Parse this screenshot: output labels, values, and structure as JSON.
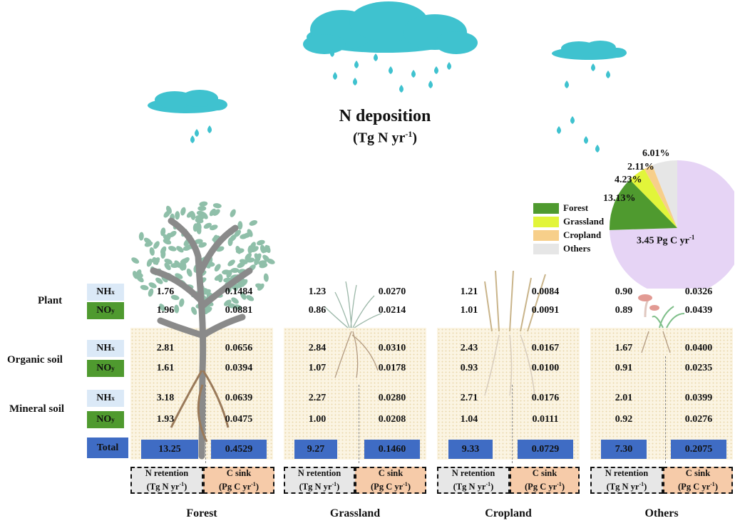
{
  "title": "N deposition",
  "title_unit_base": "(Tg N yr",
  "title_unit_sup": "-1",
  "title_unit_end": ")",
  "row_labels": {
    "plant": "Plant",
    "organic": "Organic soil",
    "mineral": "Mineral soil"
  },
  "species": {
    "nh_base": "NH",
    "nh_sub": "x",
    "no_base": "NO",
    "no_sub": "y"
  },
  "total_label": "Total",
  "unit_labels": {
    "nret_line1": "N retention",
    "nret_line2_base": "(Tg N yr",
    "nret_sup": "-1",
    "nret_end": ")",
    "csink_line1": "C sink",
    "csink_line2_base": "(Pg C yr",
    "csink_sup": "-1",
    "csink_end": ")"
  },
  "ecosystems": [
    {
      "name": "Forest",
      "plant": {
        "nh_n": "1.76",
        "nh_c": "0.1484",
        "no_n": "1.96",
        "no_c": "0.0881"
      },
      "organic": {
        "nh_n": "2.81",
        "nh_c": "0.0656",
        "no_n": "1.61",
        "no_c": "0.0394"
      },
      "mineral": {
        "nh_n": "3.18",
        "nh_c": "0.0639",
        "no_n": "1.93",
        "no_c": "0.0475"
      },
      "total_n": "13.25",
      "total_c": "0.4529"
    },
    {
      "name": "Grassland",
      "plant": {
        "nh_n": "1.23",
        "nh_c": "0.0270",
        "no_n": "0.86",
        "no_c": "0.0214"
      },
      "organic": {
        "nh_n": "2.84",
        "nh_c": "0.0310",
        "no_n": "1.07",
        "no_c": "0.0178"
      },
      "mineral": {
        "nh_n": "2.27",
        "nh_c": "0.0280",
        "no_n": "1.00",
        "no_c": "0.0208"
      },
      "total_n": "9.27",
      "total_c": "0.1460"
    },
    {
      "name": "Cropland",
      "plant": {
        "nh_n": "1.21",
        "nh_c": "0.0084",
        "no_n": "1.01",
        "no_c": "0.0091"
      },
      "organic": {
        "nh_n": "2.43",
        "nh_c": "0.0167",
        "no_n": "0.93",
        "no_c": "0.0100"
      },
      "mineral": {
        "nh_n": "2.71",
        "nh_c": "0.0176",
        "no_n": "1.04",
        "no_c": "0.0111"
      },
      "total_n": "9.33",
      "total_c": "0.0729"
    },
    {
      "name": "Others",
      "plant": {
        "nh_n": "0.90",
        "nh_c": "0.0326",
        "no_n": "0.89",
        "no_c": "0.0439"
      },
      "organic": {
        "nh_n": "1.67",
        "nh_c": "0.0400",
        "no_n": "0.91",
        "no_c": "0.0235"
      },
      "mineral": {
        "nh_n": "2.01",
        "nh_c": "0.0399",
        "no_n": "0.92",
        "no_c": "0.0276"
      },
      "total_n": "7.30",
      "total_c": "0.2075"
    }
  ],
  "pie": {
    "center_label_base": "3.45 Pg C yr",
    "center_label_sup": "-1",
    "slices": [
      {
        "name": "Forest",
        "percent": 13.13,
        "label": "13.13%",
        "color": "#4f9a2f"
      },
      {
        "name": "Grassland",
        "percent": 4.23,
        "label": "4.23%",
        "color": "#e2f53a"
      },
      {
        "name": "Cropland",
        "percent": 2.11,
        "label": "2.11%",
        "color": "#f7cf8a"
      },
      {
        "name": "Others",
        "percent": 6.01,
        "label": "6.01%",
        "color": "#e6e6e6"
      },
      {
        "name": "",
        "percent": 74.52,
        "label": "",
        "color": "#e6d4f5"
      }
    ]
  },
  "legend": [
    {
      "name": "Forest",
      "color": "#4f9a2f"
    },
    {
      "name": "Grassland",
      "color": "#e2f53a"
    },
    {
      "name": "Cropland",
      "color": "#f7cf8a"
    },
    {
      "name": "Others",
      "color": "#e6e6e6"
    }
  ],
  "colors": {
    "cloud": "#3fc2cf",
    "total": "#3f6cc4",
    "c_sink": "#f6cba9",
    "n_retention": "#e7e7e7"
  }
}
